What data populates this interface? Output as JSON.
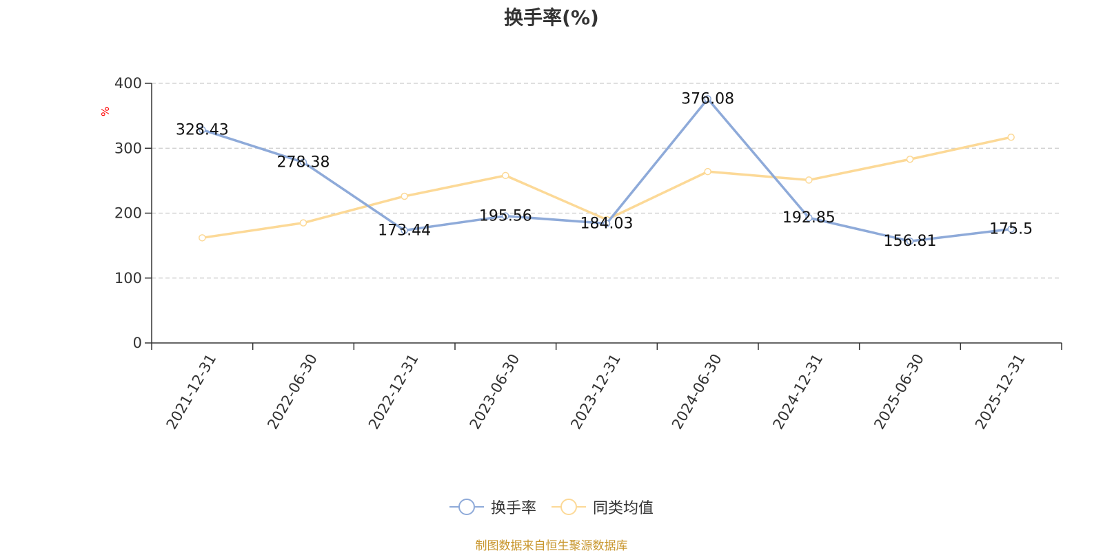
{
  "chart_data": {
    "type": "line",
    "title": "换手率(%)",
    "ylabel": "%",
    "ylim": [
      0,
      400
    ],
    "yticks": [
      0,
      100,
      200,
      300,
      400
    ],
    "grid": true,
    "legend_position": "bottom-center",
    "categories": [
      "2021-12-31",
      "2022-06-30",
      "2022-12-31",
      "2023-06-30",
      "2023-12-31",
      "2024-06-30",
      "2024-12-31",
      "2025-06-30",
      "2025-12-31"
    ],
    "series": [
      {
        "name": "换手率",
        "color": "#8eaad9",
        "values": [
          328.43,
          278.38,
          173.44,
          195.56,
          184.03,
          376.08,
          192.85,
          156.81,
          175.5
        ],
        "labels": [
          "328.43",
          "278.38",
          "173.44",
          "195.56",
          "184.03",
          "376.08",
          "192.85",
          "156.81",
          "175.5"
        ]
      },
      {
        "name": "同类均值",
        "color": "#fcd997",
        "values": [
          162,
          185,
          226,
          258,
          190,
          264,
          251,
          283,
          317
        ]
      }
    ],
    "source": "制图数据来自恒生聚源数据库"
  }
}
